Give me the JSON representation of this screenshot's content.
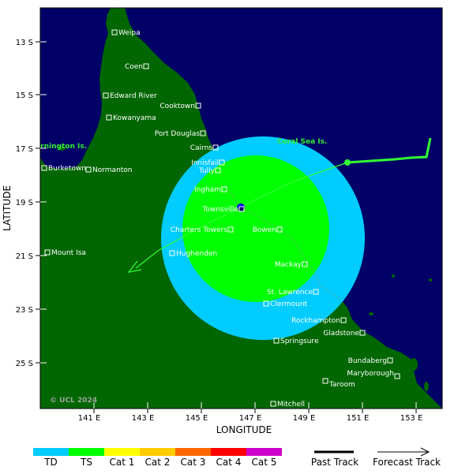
{
  "axes": {
    "x_title": "LONGITUDE",
    "y_title": "LATITUDE",
    "x_ticks": [
      "141 E",
      "143 E",
      "145 E",
      "147 E",
      "149 E",
      "151 E",
      "153 E"
    ],
    "y_ticks": [
      "13 S",
      "15 S",
      "17 S",
      "19 S",
      "21 S",
      "23 S",
      "25 S"
    ]
  },
  "places": [
    {
      "name": "Weipa"
    },
    {
      "name": "Coen"
    },
    {
      "name": "Edward River"
    },
    {
      "name": "Cooktown"
    },
    {
      "name": "Kowanyama"
    },
    {
      "name": "Port Douglas"
    },
    {
      "name": "Cairns"
    },
    {
      "name": "Innisfail"
    },
    {
      "name": "Tully"
    },
    {
      "name": "Burketown"
    },
    {
      "name": "Normanton"
    },
    {
      "name": "Ingham"
    },
    {
      "name": "Townsville"
    },
    {
      "name": "Charters Towers"
    },
    {
      "name": "Bowen"
    },
    {
      "name": "Hughenden"
    },
    {
      "name": "Mount Isa"
    },
    {
      "name": "Mackay"
    },
    {
      "name": "St. Lawrence"
    },
    {
      "name": "Clermount"
    },
    {
      "name": "Rockhampton"
    },
    {
      "name": "Gladstone"
    },
    {
      "name": "Springsure"
    },
    {
      "name": "Bundaberg"
    },
    {
      "name": "Maryborough"
    },
    {
      "name": "Taroom"
    },
    {
      "name": "Mitchell"
    }
  ],
  "regions": {
    "coral_sea": "Coral Sea Is.",
    "mornington": "ornington Is."
  },
  "copyright": "© UCL 2024",
  "legend": {
    "categories": [
      {
        "label": "TD",
        "color": "#00ccff"
      },
      {
        "label": "TS",
        "color": "#00ff00"
      },
      {
        "label": "Cat 1",
        "color": "#ffff00"
      },
      {
        "label": "Cat 2",
        "color": "#ffcc00"
      },
      {
        "label": "Cat 3",
        "color": "#ff6600"
      },
      {
        "label": "Cat 4",
        "color": "#ff0000"
      },
      {
        "label": "Cat 5",
        "color": "#cc00cc"
      }
    ],
    "past_track": "Past Track",
    "forecast_track": "Forecast Track"
  },
  "colors": {
    "ocean": "#000066",
    "land": "#006600",
    "wind_td": "#00ccff",
    "wind_ts": "#00ff00",
    "track": "#33ff33"
  }
}
